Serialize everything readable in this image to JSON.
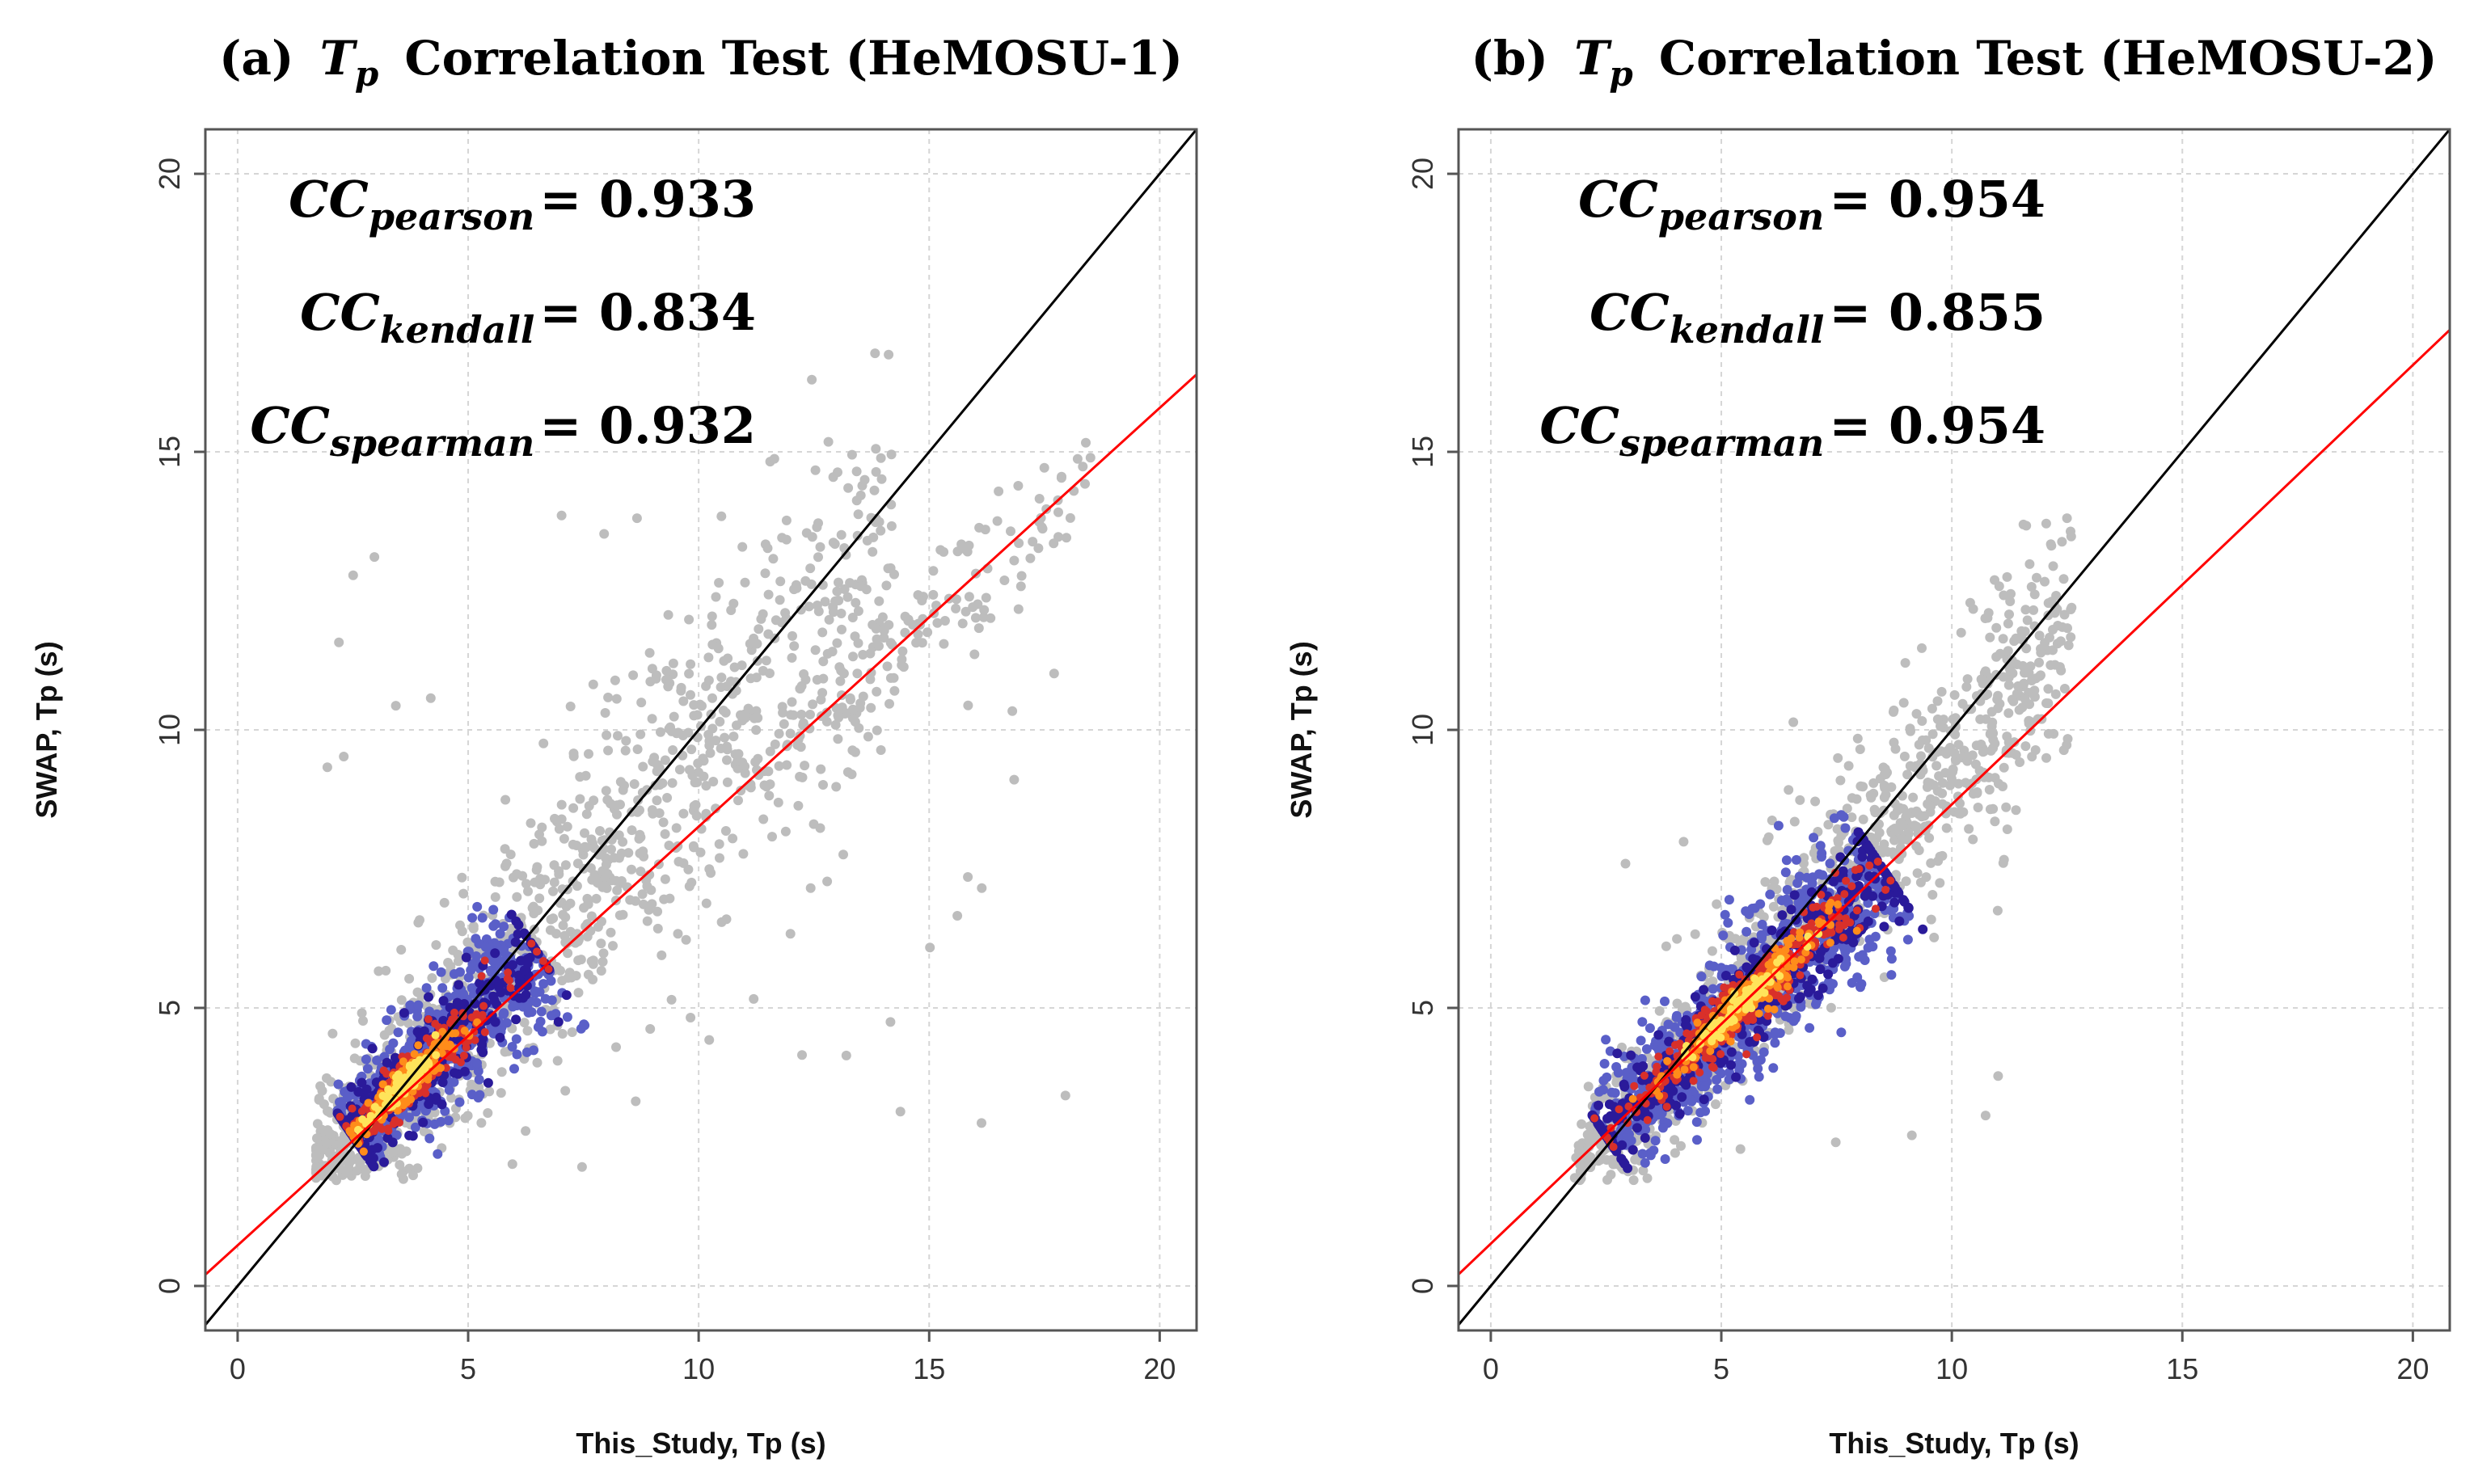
{
  "chart_data": [
    {
      "type": "scatter",
      "panel": "a",
      "title_prefix": "(a)",
      "title_symbol": "T",
      "title_subscript": "p",
      "title_suffix": "Correlation Test (HeMOSU-1)",
      "xlabel": "This_Study, Tp (s)",
      "ylabel": "SWAP, Tp (s)",
      "xlim": [
        -0.7,
        20.8
      ],
      "ylim": [
        -0.8,
        20.8
      ],
      "xticks": [
        0,
        5,
        10,
        15,
        20
      ],
      "yticks": [
        0,
        5,
        10,
        15,
        20
      ],
      "grid": true,
      "one_to_one_line": {
        "color": "#000000",
        "intercept": 0,
        "slope": 1
      },
      "regression_line": {
        "color": "#ff0000",
        "intercept": 0.73,
        "slope": 0.753
      },
      "density_core": {
        "center_start": [
          2.5,
          2.7
        ],
        "center_end": [
          6.5,
          6.0
        ],
        "peak_xy": [
          3.8,
          3.5
        ]
      },
      "stats": [
        {
          "symbol": "CC",
          "method": "pearson",
          "equals": "=",
          "value": "0.933"
        },
        {
          "symbol": "CC",
          "method": "kendall",
          "equals": "=",
          "value": "0.834"
        },
        {
          "symbol": "CC",
          "method": "spearman",
          "equals": "=",
          "value": "0.932"
        }
      ]
    },
    {
      "type": "scatter",
      "panel": "b",
      "title_prefix": "(b)",
      "title_symbol": "T",
      "title_subscript": "p",
      "title_suffix": "Correlation Test (HeMOSU-2)",
      "xlabel": "This_Study, Tp (s)",
      "ylabel": "SWAP, Tp (s)",
      "xlim": [
        -0.7,
        20.8
      ],
      "ylim": [
        -0.8,
        20.8
      ],
      "xticks": [
        0,
        5,
        10,
        15,
        20
      ],
      "yticks": [
        0,
        5,
        10,
        15,
        20
      ],
      "grid": true,
      "one_to_one_line": {
        "color": "#000000",
        "intercept": 0,
        "slope": 1
      },
      "regression_line": {
        "color": "#ff0000",
        "intercept": 0.76,
        "slope": 0.79
      },
      "density_core": {
        "center_start": [
          2.5,
          2.7
        ],
        "center_end": [
          8.5,
          7.5
        ],
        "peak_xy": [
          5.5,
          5.0
        ]
      },
      "stats": [
        {
          "symbol": "CC",
          "method": "pearson",
          "equals": "=",
          "value": "0.954"
        },
        {
          "symbol": "CC",
          "method": "kendall",
          "equals": "=",
          "value": "0.855"
        },
        {
          "symbol": "CC",
          "method": "spearman",
          "equals": "=",
          "value": "0.954"
        }
      ]
    }
  ],
  "colors": {
    "scatter_gray": "#bdbdbd",
    "density_low": "#5a5fc8",
    "density_mid": "#2a1a9a",
    "density_high1": "#d9302a",
    "density_high2": "#ff8c1a",
    "density_peak": "#ffe45a",
    "grid": "#d6d6d6",
    "frame": "#555555"
  }
}
